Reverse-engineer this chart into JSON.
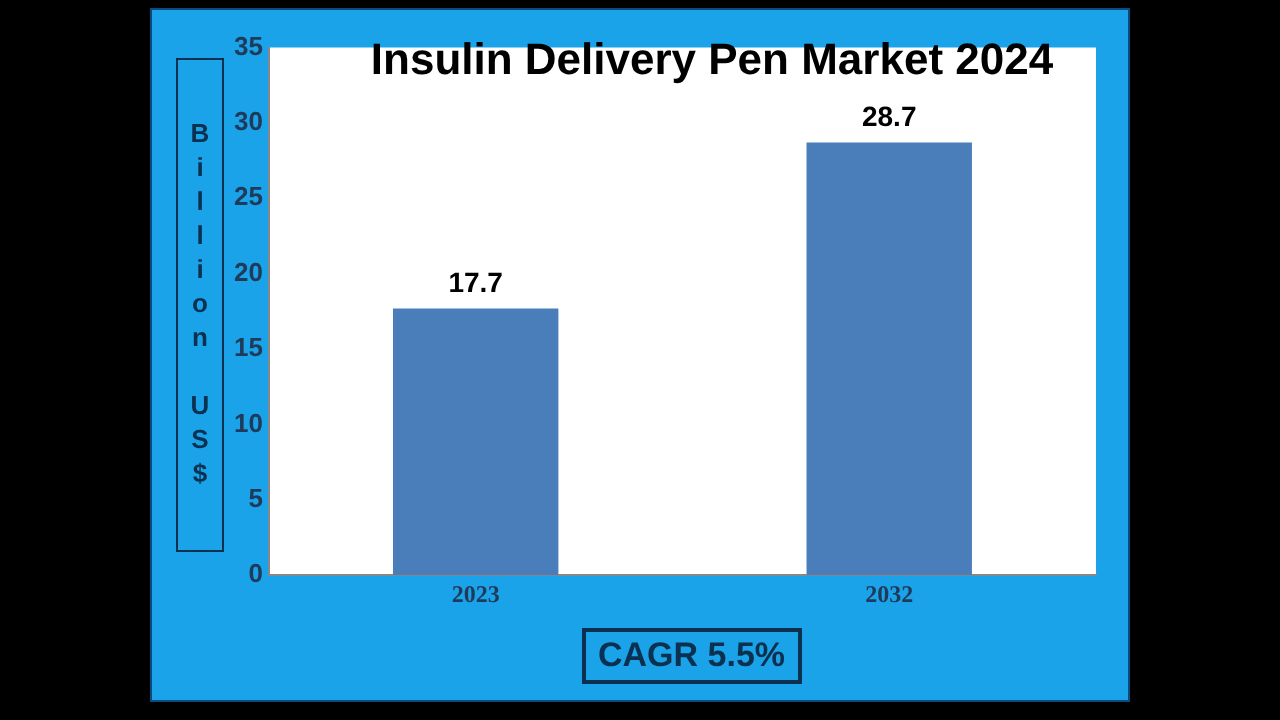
{
  "chart_data": {
    "type": "bar",
    "title": "Insulin Delivery Pen Market 2024",
    "ylabel": "Billion US$",
    "categories": [
      "2023",
      "2032"
    ],
    "values": [
      17.7,
      28.7
    ],
    "color": "#4a7ebb",
    "ylim": [
      0,
      35
    ],
    "yticks": [
      0,
      5,
      10,
      15,
      20,
      25,
      30,
      35
    ],
    "grid": false,
    "data_labels": true,
    "legend": false,
    "annotations": [
      "CAGR 5.5%"
    ]
  }
}
